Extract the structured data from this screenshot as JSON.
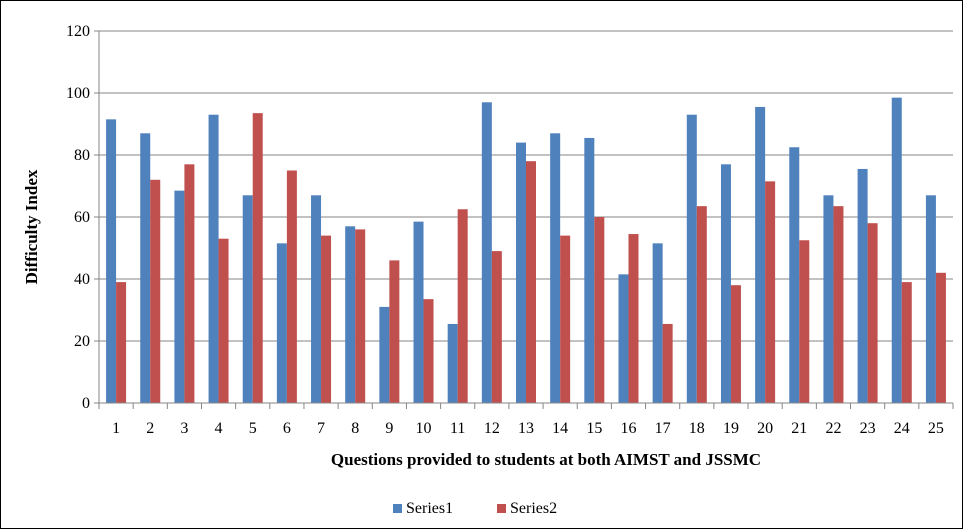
{
  "chart_data": {
    "type": "bar",
    "title": "",
    "xlabel": "Questions provided to students at both AIMST and JSSMC",
    "ylabel": "Difficulty Index",
    "ylim": [
      0,
      120
    ],
    "yticks": [
      0,
      20,
      40,
      60,
      80,
      100,
      120
    ],
    "grid": true,
    "legend_position": "bottom",
    "categories": [
      "1",
      "2",
      "3",
      "4",
      "5",
      "6",
      "7",
      "8",
      "9",
      "10",
      "11",
      "12",
      "13",
      "14",
      "15",
      "16",
      "17",
      "18",
      "19",
      "20",
      "21",
      "22",
      "23",
      "24",
      "25"
    ],
    "series": [
      {
        "name": "Series1",
        "color": "#4F81BD",
        "values": [
          91.5,
          87,
          68.5,
          93,
          67,
          51.5,
          67,
          57,
          31,
          58.5,
          25.5,
          97,
          84,
          87,
          85.5,
          41.5,
          51.5,
          93,
          77,
          95.5,
          82.5,
          67,
          75.5,
          98.5,
          67
        ]
      },
      {
        "name": "Series2",
        "color": "#C0504D",
        "values": [
          39,
          72,
          77,
          53,
          93.5,
          75,
          54,
          56,
          46,
          33.5,
          62.5,
          49,
          78,
          54,
          60,
          54.5,
          25.5,
          63.5,
          38,
          71.5,
          52.5,
          63.5,
          58,
          39,
          42
        ]
      }
    ]
  }
}
